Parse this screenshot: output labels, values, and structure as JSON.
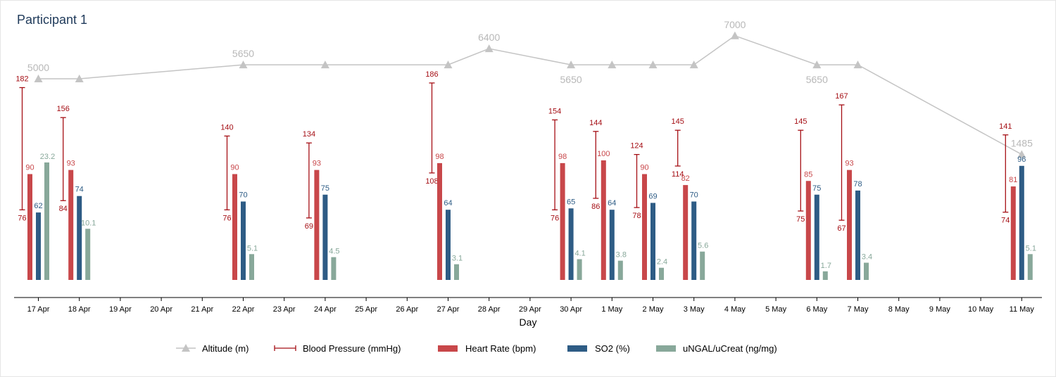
{
  "title": "Participant 1",
  "colors": {
    "altitude": "#c4c4c4",
    "altitude_label": "#b8b8b8",
    "bp": "#a50f15",
    "heart_rate": "#c8474a",
    "so2": "#2e5c85",
    "ungal": "#88a89a",
    "axis": "#000000"
  },
  "chart_data": {
    "type": "bar",
    "xlabel": "Day",
    "ticks": [
      "17 Apr",
      "18 Apr",
      "19 Apr",
      "20 Apr",
      "21 Apr",
      "22 Apr",
      "23 Apr",
      "24 Apr",
      "25 Apr",
      "26 Apr",
      "27 Apr",
      "28 Apr",
      "29 Apr",
      "30 Apr",
      "1 May",
      "2 May",
      "3 May",
      "4 May",
      "5 May",
      "6 May",
      "7 May",
      "8 May",
      "9 May",
      "10 May",
      "11 May"
    ],
    "legend": [
      "Altitude (m)",
      "Blood Pressure (mmHg)",
      "Heart Rate (bpm)",
      "SO2 (%)",
      "uNGAL/uCreat (ng/mg)"
    ],
    "legend_position": "bottom",
    "altitude": [
      {
        "day": "17 Apr",
        "value": 5000,
        "label": "5000",
        "label_pos": "above"
      },
      {
        "day": "18 Apr",
        "value": 5000
      },
      {
        "day": "22 Apr",
        "value": 5650,
        "label": "5650",
        "label_pos": "above"
      },
      {
        "day": "24 Apr",
        "value": 5650
      },
      {
        "day": "27 Apr",
        "value": 5650
      },
      {
        "day": "28 Apr",
        "value": 6400,
        "label": "6400",
        "label_pos": "above"
      },
      {
        "day": "30 Apr",
        "value": 5650,
        "label": "5650",
        "label_pos": "below"
      },
      {
        "day": "1 May",
        "value": 5650
      },
      {
        "day": "2 May",
        "value": 5650
      },
      {
        "day": "3 May",
        "value": 5650
      },
      {
        "day": "4 May",
        "value": 7000,
        "label": "7000",
        "label_pos": "above"
      },
      {
        "day": "6 May",
        "value": 5650,
        "label": "5650",
        "label_pos": "below"
      },
      {
        "day": "7 May",
        "value": 5650
      },
      {
        "day": "11 May",
        "value": 1485,
        "label": "1485",
        "label_pos": "above"
      }
    ],
    "blood_pressure": [
      {
        "day": "17 Apr",
        "systolic": 182,
        "diastolic": 76
      },
      {
        "day": "18 Apr",
        "systolic": 156,
        "diastolic": 84
      },
      {
        "day": "22 Apr",
        "systolic": 140,
        "diastolic": 76
      },
      {
        "day": "24 Apr",
        "systolic": 134,
        "diastolic": 69
      },
      {
        "day": "27 Apr",
        "systolic": 186,
        "diastolic": 108
      },
      {
        "day": "30 Apr",
        "systolic": 154,
        "diastolic": 76
      },
      {
        "day": "1 May",
        "systolic": 144,
        "diastolic": 86
      },
      {
        "day": "2 May",
        "systolic": 124,
        "diastolic": 78
      },
      {
        "day": "3 May",
        "systolic": 145,
        "diastolic": 114
      },
      {
        "day": "6 May",
        "systolic": 145,
        "diastolic": 75
      },
      {
        "day": "7 May",
        "systolic": 167,
        "diastolic": 67
      },
      {
        "day": "11 May",
        "systolic": 141,
        "diastolic": 74
      }
    ],
    "heart_rate": [
      {
        "day": "17 Apr",
        "value": 90
      },
      {
        "day": "18 Apr",
        "value": 93
      },
      {
        "day": "22 Apr",
        "value": 90
      },
      {
        "day": "24 Apr",
        "value": 93
      },
      {
        "day": "27 Apr",
        "value": 98
      },
      {
        "day": "30 Apr",
        "value": 98
      },
      {
        "day": "1 May",
        "value": 100
      },
      {
        "day": "2 May",
        "value": 90
      },
      {
        "day": "3 May",
        "value": 82
      },
      {
        "day": "6 May",
        "value": 85
      },
      {
        "day": "7 May",
        "value": 93
      },
      {
        "day": "11 May",
        "value": 81
      }
    ],
    "so2": [
      {
        "day": "17 Apr",
        "value": 62
      },
      {
        "day": "18 Apr",
        "value": 74
      },
      {
        "day": "22 Apr",
        "value": 70
      },
      {
        "day": "24 Apr",
        "value": 75
      },
      {
        "day": "27 Apr",
        "value": 64
      },
      {
        "day": "30 Apr",
        "value": 65
      },
      {
        "day": "1 May",
        "value": 64
      },
      {
        "day": "2 May",
        "value": 69
      },
      {
        "day": "3 May",
        "value": 70
      },
      {
        "day": "6 May",
        "value": 75
      },
      {
        "day": "7 May",
        "value": 78
      },
      {
        "day": "11 May",
        "value": 96
      }
    ],
    "ungal": [
      {
        "day": "17 Apr",
        "value": 23.2
      },
      {
        "day": "18 Apr",
        "value": 10.1
      },
      {
        "day": "22 Apr",
        "value": 5.1
      },
      {
        "day": "24 Apr",
        "value": 4.5
      },
      {
        "day": "27 Apr",
        "value": 3.1
      },
      {
        "day": "30 Apr",
        "value": 4.1
      },
      {
        "day": "1 May",
        "value": 3.8
      },
      {
        "day": "2 May",
        "value": 2.4
      },
      {
        "day": "3 May",
        "value": 5.6
      },
      {
        "day": "6 May",
        "value": 1.7
      },
      {
        "day": "7 May",
        "value": 3.4
      },
      {
        "day": "11 May",
        "value": 5.1
      }
    ]
  }
}
